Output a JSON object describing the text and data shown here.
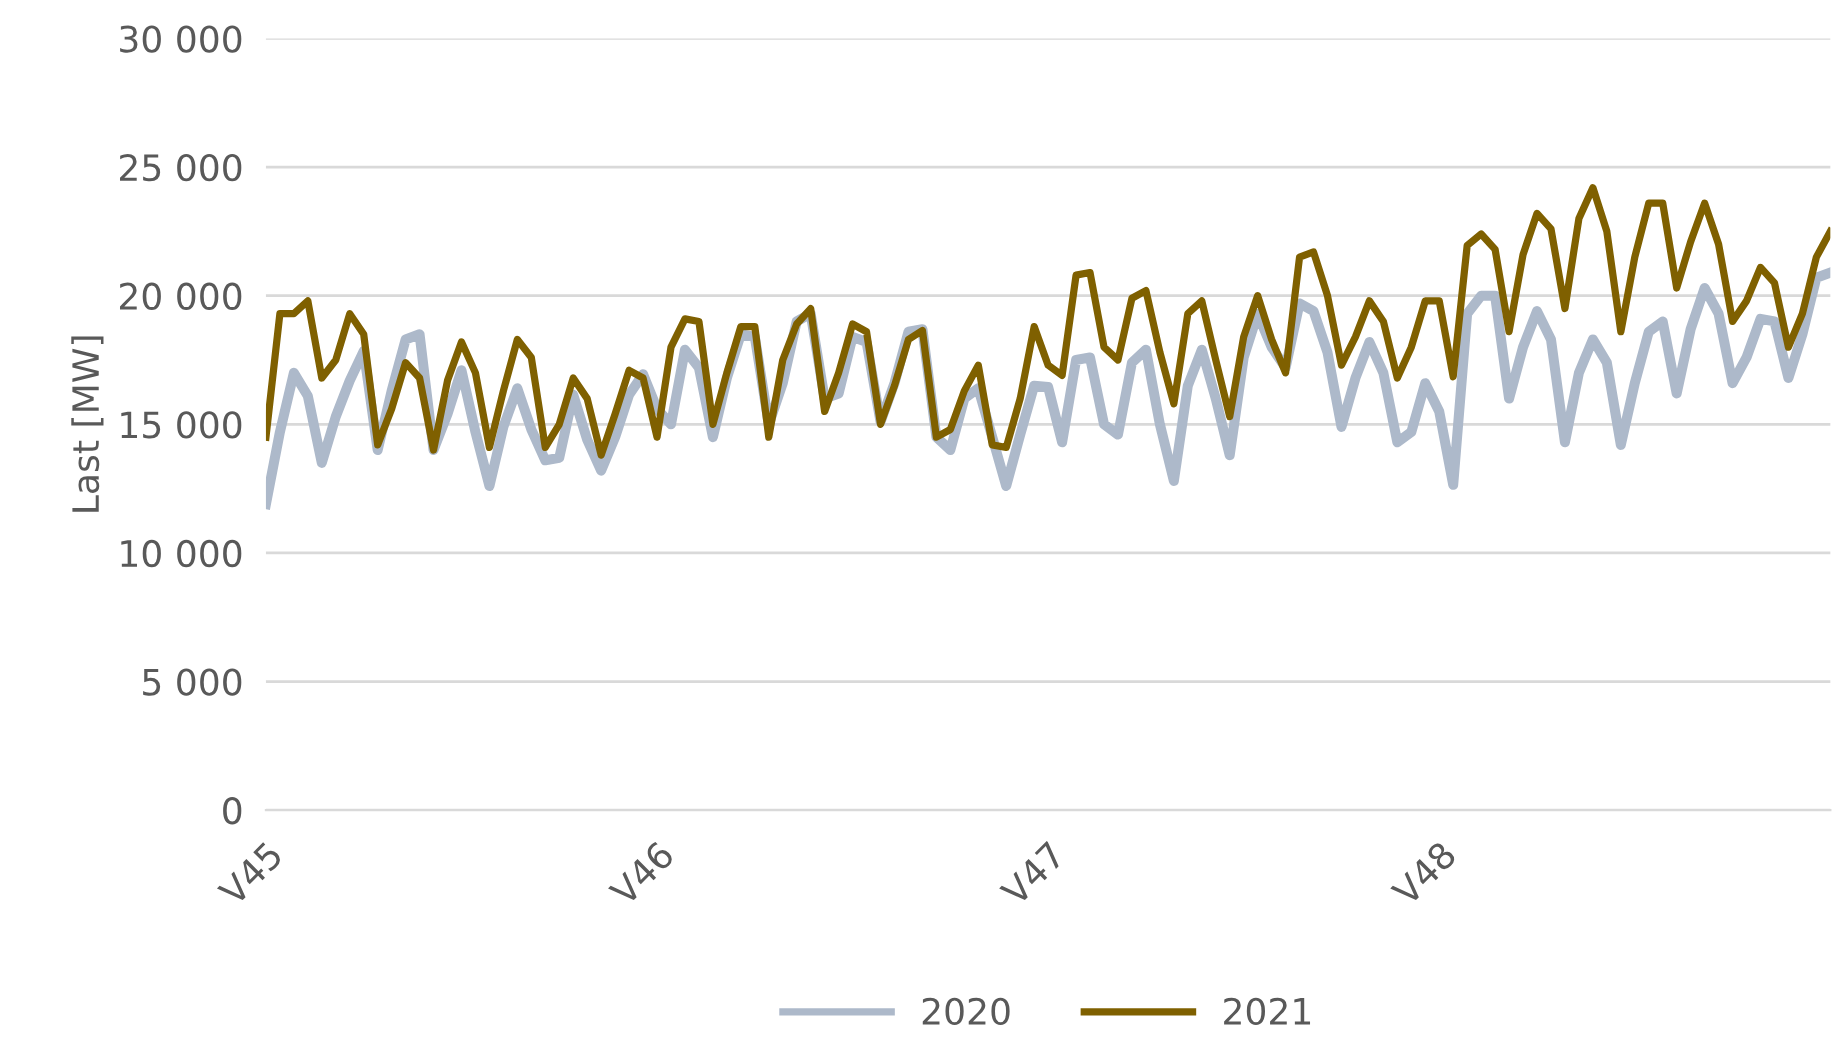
{
  "chart_data": {
    "type": "line",
    "ylabel": "Last [MW]",
    "categories": [
      "V45",
      null,
      null,
      null,
      null,
      null,
      null,
      null,
      null,
      null,
      null,
      null,
      null,
      null,
      null,
      null,
      null,
      null,
      null,
      null,
      null,
      null,
      null,
      null,
      null,
      null,
      null,
      null,
      "V46",
      null,
      null,
      null,
      null,
      null,
      null,
      null,
      null,
      null,
      null,
      null,
      null,
      null,
      null,
      null,
      null,
      null,
      null,
      null,
      null,
      null,
      null,
      null,
      null,
      null,
      null,
      null,
      "V47",
      null,
      null,
      null,
      null,
      null,
      null,
      null,
      null,
      null,
      null,
      null,
      null,
      null,
      null,
      null,
      null,
      null,
      null,
      null,
      null,
      null,
      null,
      null,
      null,
      null,
      null,
      null,
      "V48",
      null,
      null,
      null,
      null,
      null,
      null,
      null,
      null,
      null,
      null,
      null,
      null,
      null,
      null,
      null,
      null,
      null,
      null,
      null,
      null,
      null,
      null,
      null,
      null,
      null,
      null,
      null,
      null
    ],
    "series": [
      {
        "name": "2020",
        "color": "#adb9ca",
        "values": [
          11900,
          14700,
          17000,
          16100,
          13500,
          15300,
          16700,
          17850,
          14000,
          16300,
          18300,
          18500,
          14000,
          15400,
          17100,
          14700,
          12600,
          14900,
          16400,
          14800,
          13600,
          13700,
          16150,
          14400,
          13200,
          14500,
          16150,
          16950,
          15600,
          15000,
          17900,
          17200,
          14500,
          16800,
          18500,
          18400,
          15000,
          16600,
          19000,
          19300,
          16000,
          16200,
          18400,
          18200,
          15100,
          16600,
          18600,
          18700,
          14500,
          14000,
          16000,
          16400,
          14500,
          12600,
          14600,
          16500,
          16450,
          14300,
          17500,
          17600,
          15000,
          14600,
          17400,
          17900,
          15000,
          12800,
          16500,
          17900,
          16000,
          13800,
          17600,
          19300,
          18000,
          17200,
          19700,
          19400,
          17800,
          14900,
          16800,
          18200,
          17000,
          14300,
          14700,
          16600,
          15500,
          12650,
          19300,
          20000,
          20000,
          16000,
          18000,
          19400,
          18300,
          14300,
          17000,
          18300,
          17400,
          14200,
          16600,
          18600,
          19000,
          16200,
          18700,
          20300,
          19300,
          16600,
          17600,
          19100,
          19000,
          16800,
          18500,
          20700,
          20900
        ]
      },
      {
        "name": "2021",
        "color": "#7f6000",
        "values": [
          14500,
          19300,
          19300,
          19800,
          16800,
          17500,
          19300,
          18500,
          14200,
          15600,
          17400,
          16800,
          14000,
          16700,
          18200,
          17000,
          14100,
          16300,
          18300,
          17600,
          14100,
          15000,
          16800,
          16000,
          13800,
          15400,
          17100,
          16800,
          14500,
          18000,
          19100,
          19000,
          15000,
          17000,
          18800,
          18800,
          14500,
          17500,
          18900,
          19500,
          15500,
          17000,
          18900,
          18600,
          15000,
          16500,
          18300,
          18650,
          14500,
          14800,
          16300,
          17300,
          14200,
          14100,
          16000,
          18800,
          17300,
          16900,
          20800,
          20900,
          18000,
          17500,
          19900,
          20200,
          17800,
          15800,
          19300,
          19800,
          17500,
          15300,
          18400,
          20000,
          18300,
          17000,
          21500,
          21700,
          20000,
          17300,
          18400,
          19800,
          19000,
          16800,
          18000,
          19800,
          19800,
          16850,
          21950,
          22400,
          21800,
          18600,
          21600,
          23200,
          22600,
          19500,
          23000,
          24200,
          22500,
          18600,
          21500,
          23600,
          23600,
          20300,
          22100,
          23600,
          22000,
          19000,
          19800,
          21100,
          20500,
          18000,
          19300,
          21500,
          22500
        ]
      }
    ],
    "ylim": [
      0,
      30000
    ],
    "yticks": [
      {
        "value": 0,
        "label": "0"
      },
      {
        "value": 5000,
        "label": "5 000"
      },
      {
        "value": 10000,
        "label": "10 000"
      },
      {
        "value": 15000,
        "label": "15 000"
      },
      {
        "value": 20000,
        "label": "20 000"
      },
      {
        "value": 25000,
        "label": "25 000"
      },
      {
        "value": 30000,
        "label": "30 000"
      }
    ],
    "grid": "y",
    "legend": "bottom",
    "marker": "none",
    "line_style": "solid"
  }
}
